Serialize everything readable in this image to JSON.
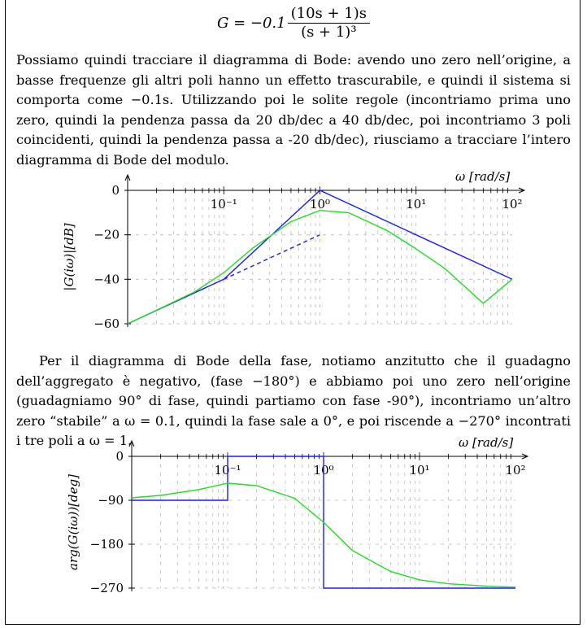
{
  "formula": {
    "lhs": "G = −0.1",
    "numerator": "(10s + 1)s",
    "denominator": "(s + 1)³"
  },
  "paragraph1": "Possiamo quindi tracciare il diagramma di Bode: avendo uno zero nell’origine, a basse frequenze gli altri poli hanno un effetto trascurabile, e quindi il sistema si comporta come −0.1s. Utilizzando poi le solite regole (incontriamo prima uno zero, quindi la pendenza passa da 20 db/dec a 40 db/dec, poi incontriamo 3 poli coincidenti, quindi la pendenza passa a -20 db/dec), riusciamo a tracciare l’intero diagramma di Bode del modulo.",
  "paragraph2": "Per il diagramma di Bode della fase, notiamo anzitutto che il guadagno dell’aggregato è negativo, (fase −180°) e abbiamo poi uno zero nell’origine (guadagniamo 90° di fase, quindi partiamo con fase -90°), incontriamo un’altro zero “stabile” a ω = 0.1, quindi la fase sale a 0°, e poi riscende a −270° incontrati i tre poli a ω = 1.",
  "chart_data": [
    {
      "type": "line",
      "xlabel": "ω [rad/s]",
      "ylabel": "|G(iω)|[dB]",
      "x_scale": "log",
      "xlim": [
        0.01,
        100
      ],
      "ylim": [
        -60,
        0
      ],
      "x_ticks": [
        "10⁻¹",
        "10⁰",
        "10¹",
        "10²"
      ],
      "y_ticks": [
        "0",
        "−20",
        "−40",
        "−60"
      ],
      "grid": "dashed",
      "series": [
        {
          "style": "asymptotic",
          "color": "#1a1aff",
          "x": [
            0.01,
            0.1,
            1,
            100
          ],
          "y": [
            -60,
            -40,
            0,
            -40
          ]
        },
        {
          "style": "dashed asymptote",
          "color": "#1a1aff",
          "x": [
            0.1,
            1
          ],
          "y": [
            -40,
            -20
          ]
        },
        {
          "style": "exact",
          "color": "#22dd22",
          "x": [
            0.01,
            0.02,
            0.05,
            0.1,
            0.2,
            0.5,
            1,
            2,
            5,
            10,
            20,
            50,
            100
          ],
          "y": [
            -60,
            -53.9,
            -45.6,
            -37,
            -26,
            -14.1,
            -9.03,
            -10.1,
            -18.1,
            -26.3,
            -35.2,
            -50.8,
            -40
          ]
        }
      ]
    },
    {
      "type": "line",
      "xlabel": "ω [rad/s]",
      "ylabel": "arg(G(iω))[deg]",
      "x_scale": "log",
      "xlim": [
        0.01,
        100
      ],
      "ylim": [
        -270,
        0
      ],
      "x_ticks": [
        "10⁻¹",
        "10⁰",
        "10¹",
        "10²"
      ],
      "y_ticks": [
        "0",
        "−90",
        "−180",
        "−270"
      ],
      "grid": "dashed",
      "series": [
        {
          "style": "asymptotic",
          "color": "#1a1aff",
          "x": [
            0.01,
            0.1,
            0.1,
            1,
            1,
            100
          ],
          "y": [
            -90,
            -90,
            0,
            0,
            -270,
            -270
          ]
        },
        {
          "style": "exact",
          "color": "#22dd22",
          "x": [
            0.01,
            0.02,
            0.05,
            0.1,
            0.2,
            0.5,
            1,
            2,
            5,
            10,
            20,
            50,
            100
          ],
          "y": [
            -85,
            -80,
            -68,
            -55,
            -60,
            -86,
            -135,
            -193,
            -236,
            -253,
            -261,
            -266,
            -268
          ]
        }
      ]
    }
  ]
}
